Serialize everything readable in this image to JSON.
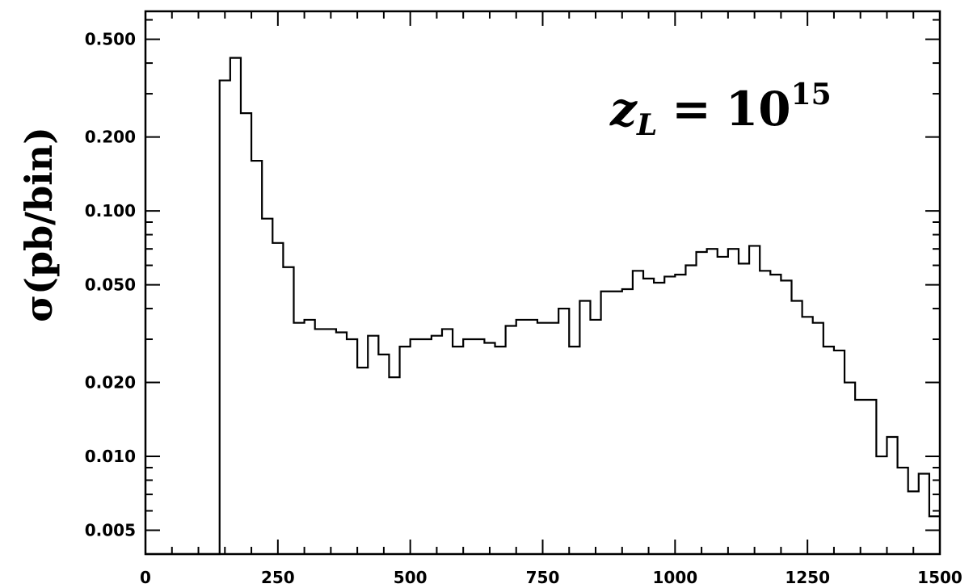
{
  "chart_data": {
    "type": "histogram",
    "ylabel": "σ(pb/bin)",
    "xlabel": "",
    "annotation": {
      "base": "z",
      "subscript": "L",
      "equals": "=",
      "mantissa": "10",
      "exponent": "15"
    },
    "xlim": [
      0,
      1500
    ],
    "ylim": [
      0.004,
      0.65
    ],
    "yscale": "log",
    "x_ticks": [
      "0",
      "250",
      "500",
      "750",
      "1000",
      "1250",
      "1500"
    ],
    "y_ticks": [
      "0.005",
      "0.010",
      "0.020",
      "0.050",
      "0.100",
      "0.200",
      "0.500"
    ],
    "grid": false,
    "bin_width": 20,
    "bin_edges_start": 140,
    "values": [
      0.34,
      0.42,
      0.25,
      0.16,
      0.093,
      0.074,
      0.059,
      0.035,
      0.036,
      0.033,
      0.033,
      0.032,
      0.03,
      0.023,
      0.031,
      0.026,
      0.021,
      0.028,
      0.03,
      0.03,
      0.031,
      0.033,
      0.028,
      0.03,
      0.03,
      0.029,
      0.028,
      0.034,
      0.036,
      0.036,
      0.035,
      0.035,
      0.04,
      0.028,
      0.043,
      0.036,
      0.047,
      0.047,
      0.048,
      0.057,
      0.053,
      0.051,
      0.054,
      0.055,
      0.06,
      0.068,
      0.07,
      0.065,
      0.07,
      0.061,
      0.072,
      0.057,
      0.055,
      0.052,
      0.043,
      0.037,
      0.035,
      0.028,
      0.027,
      0.02,
      0.017,
      0.017,
      0.01,
      0.012,
      0.009,
      0.0072,
      0.0085,
      0.0057
    ]
  }
}
